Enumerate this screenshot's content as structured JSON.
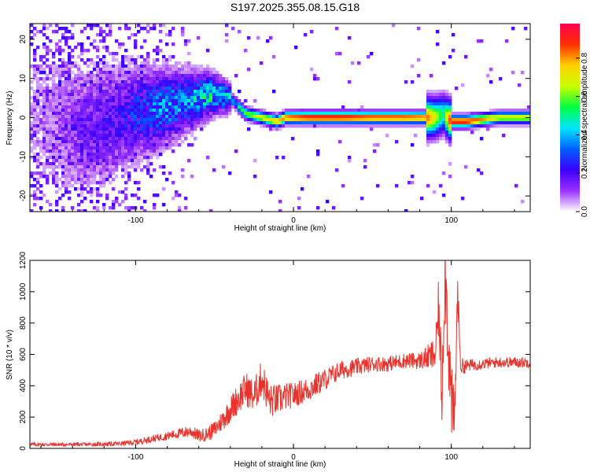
{
  "title": "S197.2025.355.08.15.G18",
  "chart_data": [
    {
      "type": "heatmap",
      "xlabel": "Height of straight line (km)",
      "ylabel": "Frequency (Hz)",
      "xlim": [
        -167,
        150
      ],
      "ylim": [
        -24,
        24
      ],
      "x_ticks": [
        -100,
        0,
        100
      ],
      "y_ticks": [
        -20,
        -10,
        0,
        10,
        20
      ],
      "colorbar": {
        "label": "Normalized spectral amplitude",
        "range": [
          0,
          0.98
        ],
        "ticks": [
          0.0,
          0.2,
          0.4,
          0.6,
          0.8
        ],
        "tick_labels": [
          "0.0",
          "0.2",
          "0.4",
          "0.6",
          "0.8"
        ],
        "colormap": [
          "#ffffff",
          "#9b30ff",
          "#3a00ff",
          "#0060ff",
          "#00e5ff",
          "#00ff40",
          "#c8ff00",
          "#ffd000",
          "#ff3000",
          "#ff0050"
        ]
      },
      "ridge": {
        "x": [
          -165,
          -150,
          -130,
          -110,
          -100,
          -90,
          -80,
          -70,
          -60,
          -50,
          -40,
          -35,
          -30,
          -20,
          -10,
          -5,
          0,
          10,
          30,
          50,
          70,
          85,
          90,
          95,
          100,
          110,
          130,
          150
        ],
        "center": [
          0,
          -2,
          -3,
          0,
          1,
          2,
          3,
          4,
          5,
          6,
          5,
          3,
          1,
          0,
          -1,
          0,
          0,
          0,
          0,
          0,
          0,
          0,
          0,
          1,
          -1,
          -1,
          0,
          0
        ],
        "amplitude": [
          0.05,
          0.08,
          0.15,
          0.2,
          0.25,
          0.3,
          0.35,
          0.35,
          0.4,
          0.45,
          0.4,
          0.5,
          0.6,
          0.7,
          0.8,
          0.85,
          0.9,
          0.95,
          0.95,
          0.9,
          0.9,
          0.85,
          0.7,
          0.5,
          0.95,
          0.95,
          0.7,
          0.7
        ]
      }
    },
    {
      "type": "line",
      "xlabel": "Height of straight line (km)",
      "ylabel": "SNR (10 * v/v)",
      "xlim": [
        -167,
        150
      ],
      "ylim": [
        0,
        1200
      ],
      "x_ticks": [
        -100,
        0,
        100
      ],
      "y_ticks": [
        0,
        200,
        400,
        600,
        800,
        1000,
        1200
      ],
      "color": "#e8322b",
      "series": [
        {
          "x": [
            -167,
            -150,
            -130,
            -110,
            -100,
            -90,
            -80,
            -70,
            -65,
            -60,
            -55,
            -50,
            -45,
            -40,
            -35,
            -30,
            -25,
            -20,
            -15,
            -10,
            -5,
            0,
            10,
            20,
            30,
            40,
            50,
            60,
            70,
            80,
            85,
            90,
            92,
            94,
            96,
            98,
            100,
            102,
            104,
            106,
            110,
            120,
            130,
            140,
            150
          ],
          "values": [
            25,
            25,
            25,
            30,
            40,
            60,
            80,
            100,
            110,
            80,
            90,
            120,
            180,
            250,
            320,
            380,
            330,
            450,
            300,
            310,
            330,
            340,
            380,
            440,
            500,
            520,
            540,
            540,
            560,
            560,
            580,
            600,
            900,
            350,
            1200,
            700,
            300,
            150,
            1000,
            520,
            530,
            540,
            550,
            550,
            550
          ],
          "noise": [
            12,
            12,
            12,
            15,
            18,
            22,
            28,
            35,
            40,
            40,
            45,
            55,
            70,
            85,
            100,
            110,
            110,
            120,
            110,
            100,
            90,
            80,
            80,
            70,
            60,
            55,
            50,
            50,
            50,
            55,
            80,
            120,
            200,
            250,
            300,
            300,
            250,
            200,
            150,
            60,
            40,
            35,
            35,
            35,
            35
          ]
        }
      ]
    }
  ]
}
